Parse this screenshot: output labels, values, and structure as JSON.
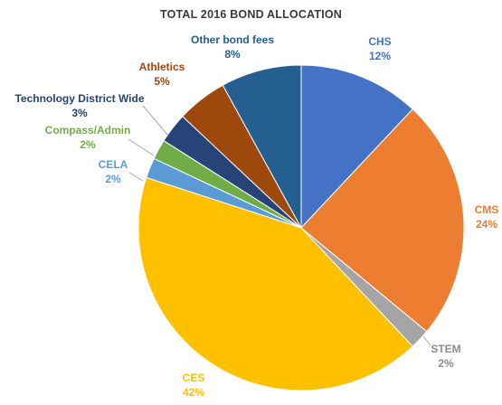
{
  "chart_data": {
    "type": "pie",
    "title": "TOTAL 2016 BOND ALLOCATION",
    "slices": [
      {
        "name": "CHS",
        "value": 12,
        "label": "12%",
        "color": "#4472c4"
      },
      {
        "name": "CMS",
        "value": 24,
        "label": "24%",
        "color": "#ed7d31"
      },
      {
        "name": "STEM",
        "value": 2,
        "label": "2%",
        "color": "#a5a5a5"
      },
      {
        "name": "CES",
        "value": 42,
        "label": "42%",
        "color": "#ffc000"
      },
      {
        "name": "CELA",
        "value": 2,
        "label": "2%",
        "color": "#5b9bd5"
      },
      {
        "name": "Compass/Admin",
        "value": 2,
        "label": "2%",
        "color": "#70ad47"
      },
      {
        "name": "Technology District Wide",
        "value": 3,
        "label": "3%",
        "color": "#264478"
      },
      {
        "name": "Athletics",
        "value": 5,
        "label": "5%",
        "color": "#9e480e"
      },
      {
        "name": "Other bond fees",
        "value": 8,
        "label": "8%",
        "color": "#255e91"
      }
    ],
    "start_angle_deg": 0,
    "direction": "clockwise",
    "data_labels": "outside-with-leader-lines",
    "legend": "none"
  }
}
